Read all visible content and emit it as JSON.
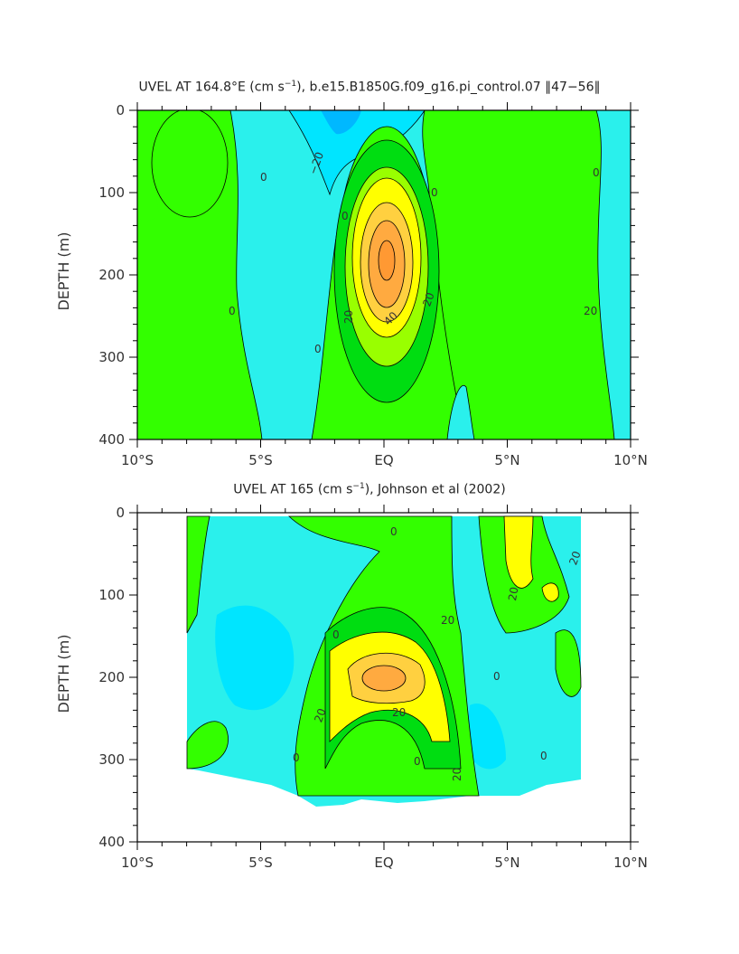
{
  "chart_data": [
    {
      "type": "heatmap",
      "title_pre": "UVEL AT 164.8°E (cm s",
      "title_sup": "−1",
      "title_post": "), b.e15.B1850G.f09_g16.pi_control.07 ‖47−56‖",
      "ylabel": "DEPTH (m)",
      "xlabel": "",
      "x_ticklabels": [
        "10°S",
        "5°S",
        "EQ",
        "5°N",
        "10°N"
      ],
      "y_ticklabels": [
        "0",
        "100",
        "200",
        "300",
        "400"
      ],
      "xlim": [
        -10,
        10
      ],
      "ylim": [
        400,
        0
      ],
      "contour_labels": [
        "0",
        "−20",
        "0",
        "0",
        "0",
        "0",
        "0",
        "20",
        "20",
        "40"
      ],
      "max_feature": {
        "lat": 0,
        "depth": 180,
        "value_gt": 50
      }
    },
    {
      "type": "heatmap",
      "title_pre": "UVEL AT 165 (cm s",
      "title_sup": "−1",
      "title_post": "), Johnson et al (2002)",
      "ylabel": "DEPTH (m)",
      "xlabel": "",
      "x_ticklabels": [
        "10°S",
        "5°S",
        "EQ",
        "5°N",
        "10°N"
      ],
      "y_ticklabels": [
        "0",
        "100",
        "200",
        "300",
        "400"
      ],
      "xlim": [
        -10,
        10
      ],
      "ylim": [
        400,
        0
      ],
      "contour_labels": [
        "0",
        "20",
        "20",
        "0",
        "20",
        "20",
        "0",
        "0",
        "0",
        "20",
        "20",
        "0"
      ],
      "max_feature": {
        "lat": -0.5,
        "depth": 185,
        "value_gt": 40
      }
    }
  ],
  "colors": {
    "neg20": "#00e5ff",
    "neg": "#2af0ec",
    "zero": "#33ff00",
    "l20": "#00dd11",
    "l40": "#ffff00",
    "l50": "#ffd040",
    "l60": "#ffaa40",
    "l70": "#ff9933"
  }
}
